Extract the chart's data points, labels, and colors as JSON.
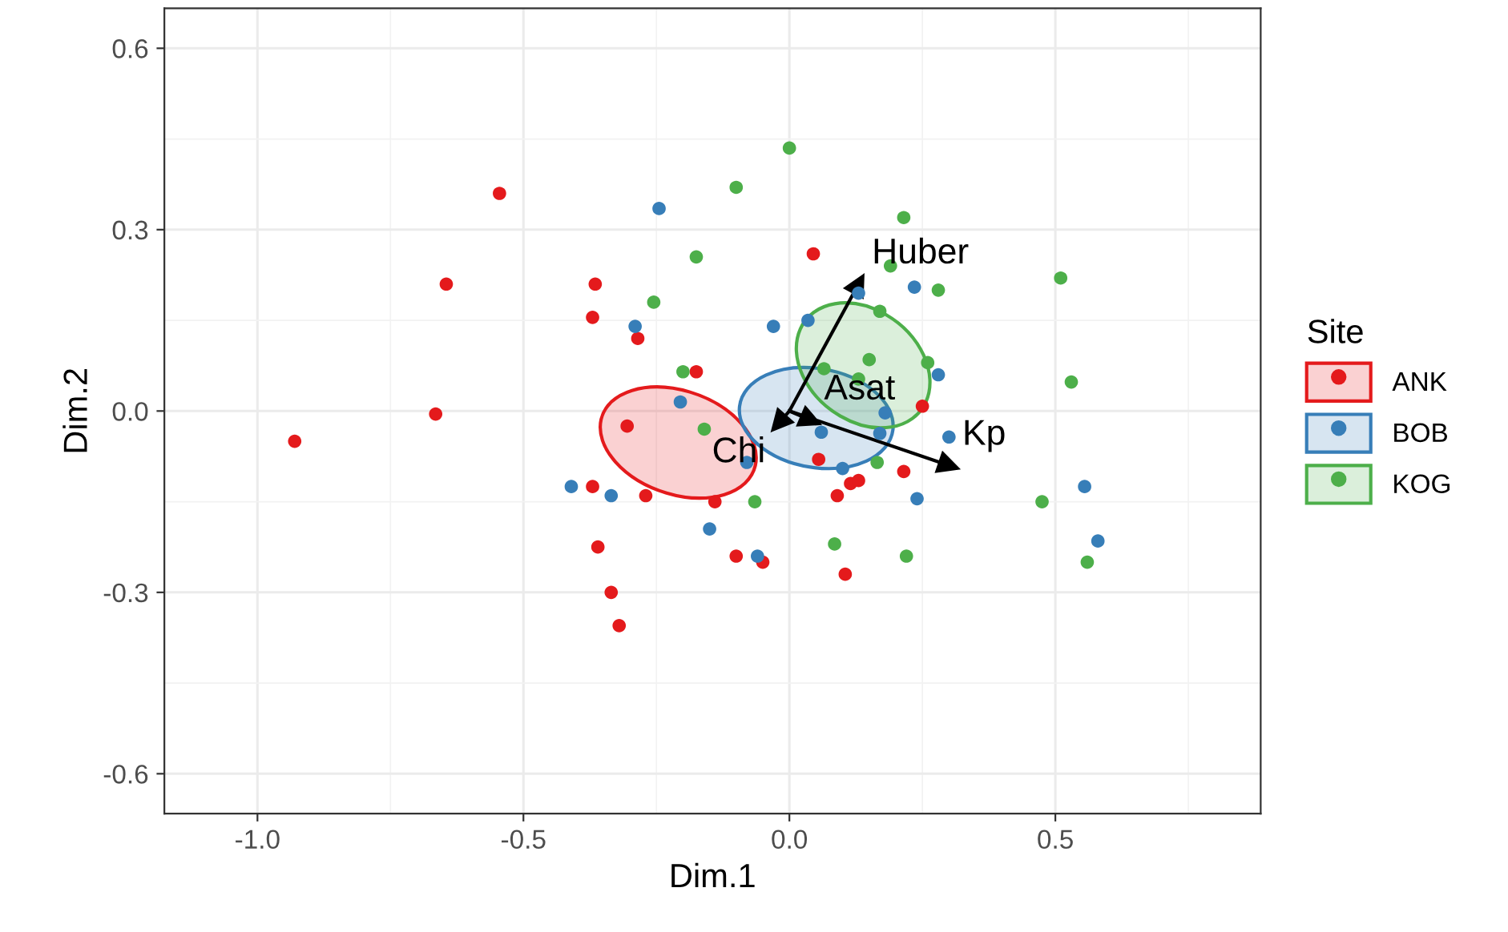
{
  "chart_data": {
    "type": "scatter",
    "xlabel": "Dim.1",
    "ylabel": "Dim.2",
    "legend_title": "Site",
    "legend": "right",
    "grid": true,
    "marker": "circle",
    "xlim": [
      -1.175,
      0.886
    ],
    "ylim": [
      -0.666,
      0.666
    ],
    "xticks": [
      {
        "value": -1.0,
        "label": "-1.0"
      },
      -0.5,
      {
        "value": 0.0,
        "label": "0.0"
      },
      0.5
    ],
    "yticks": [
      -0.6,
      -0.3,
      {
        "value": 0.0,
        "label": "0.0"
      },
      0.3,
      0.6
    ],
    "series": [
      {
        "name": "ANK",
        "color": "#e41a1c",
        "x": [
          -0.93,
          -0.545,
          -0.645,
          -0.665,
          -0.365,
          -0.37,
          -0.285,
          -0.175,
          -0.305,
          -0.37,
          -0.27,
          -0.36,
          -0.335,
          -0.32,
          -0.14,
          0.045,
          0.25,
          0.055,
          0.09,
          0.115,
          0.13,
          0.215,
          -0.1,
          -0.05,
          0.105
        ],
        "values": [
          -0.05,
          0.36,
          0.21,
          -0.005,
          0.21,
          0.155,
          0.12,
          0.065,
          -0.025,
          -0.125,
          -0.14,
          -0.225,
          -0.3,
          -0.355,
          -0.15,
          0.26,
          0.008,
          -0.08,
          -0.14,
          -0.12,
          -0.115,
          -0.1,
          -0.24,
          -0.25,
          -0.27
        ]
      },
      {
        "name": "BOB",
        "color": "#377eb8",
        "x": [
          -0.245,
          -0.29,
          -0.205,
          -0.41,
          -0.335,
          -0.15,
          -0.03,
          0.035,
          0.13,
          0.235,
          0.28,
          0.18,
          0.06,
          0.17,
          0.3,
          0.1,
          -0.08,
          0.24,
          -0.06,
          0.555,
          0.58
        ],
        "values": [
          0.335,
          0.14,
          0.015,
          -0.125,
          -0.14,
          -0.195,
          0.14,
          0.15,
          0.195,
          0.205,
          0.06,
          -0.003,
          -0.035,
          -0.037,
          -0.043,
          -0.095,
          -0.085,
          -0.145,
          -0.24,
          -0.125,
          -0.215
        ]
      },
      {
        "name": "Huber",
        "type": "line",
        "marker": "triangle",
        "color": "#000000",
        "x": [
          0,
          0.13
        ],
        "values": [
          0,
          0.21
        ]
      },
      {
        "name": "Asat",
        "type": "line",
        "marker": "triangle",
        "color": "#000000",
        "x": [
          0,
          0.04
        ],
        "values": [
          0,
          -0.015
        ]
      },
      {
        "name": "Chi",
        "type": "line",
        "marker": "triangle",
        "color": "#000000",
        "x": [
          0,
          -0.02
        ],
        "values": [
          0,
          -0.02
        ]
      },
      {
        "name": "Kp",
        "type": "line",
        "marker": "triangle",
        "color": "#000000",
        "x": [
          0,
          0.3
        ],
        "values": [
          0,
          -0.09
        ]
      },
      {
        "name": "KOG",
        "color": "#4daf4a",
        "x": [
          -0.175,
          -0.255,
          -0.2,
          -0.16,
          0.0,
          -0.1,
          0.215,
          0.19,
          0.28,
          0.51,
          0.17,
          0.15,
          0.26,
          0.065,
          0.13,
          0.53,
          0.165,
          -0.065,
          0.475,
          0.085,
          0.22,
          0.56
        ],
        "values": [
          0.255,
          0.18,
          0.065,
          -0.03,
          0.435,
          0.37,
          0.32,
          0.24,
          0.2,
          0.22,
          0.165,
          0.085,
          0.08,
          0.07,
          0.053,
          0.048,
          -0.085,
          -0.15,
          -0.15,
          -0.22,
          -0.24,
          -0.25
        ]
      }
    ]
  }
}
